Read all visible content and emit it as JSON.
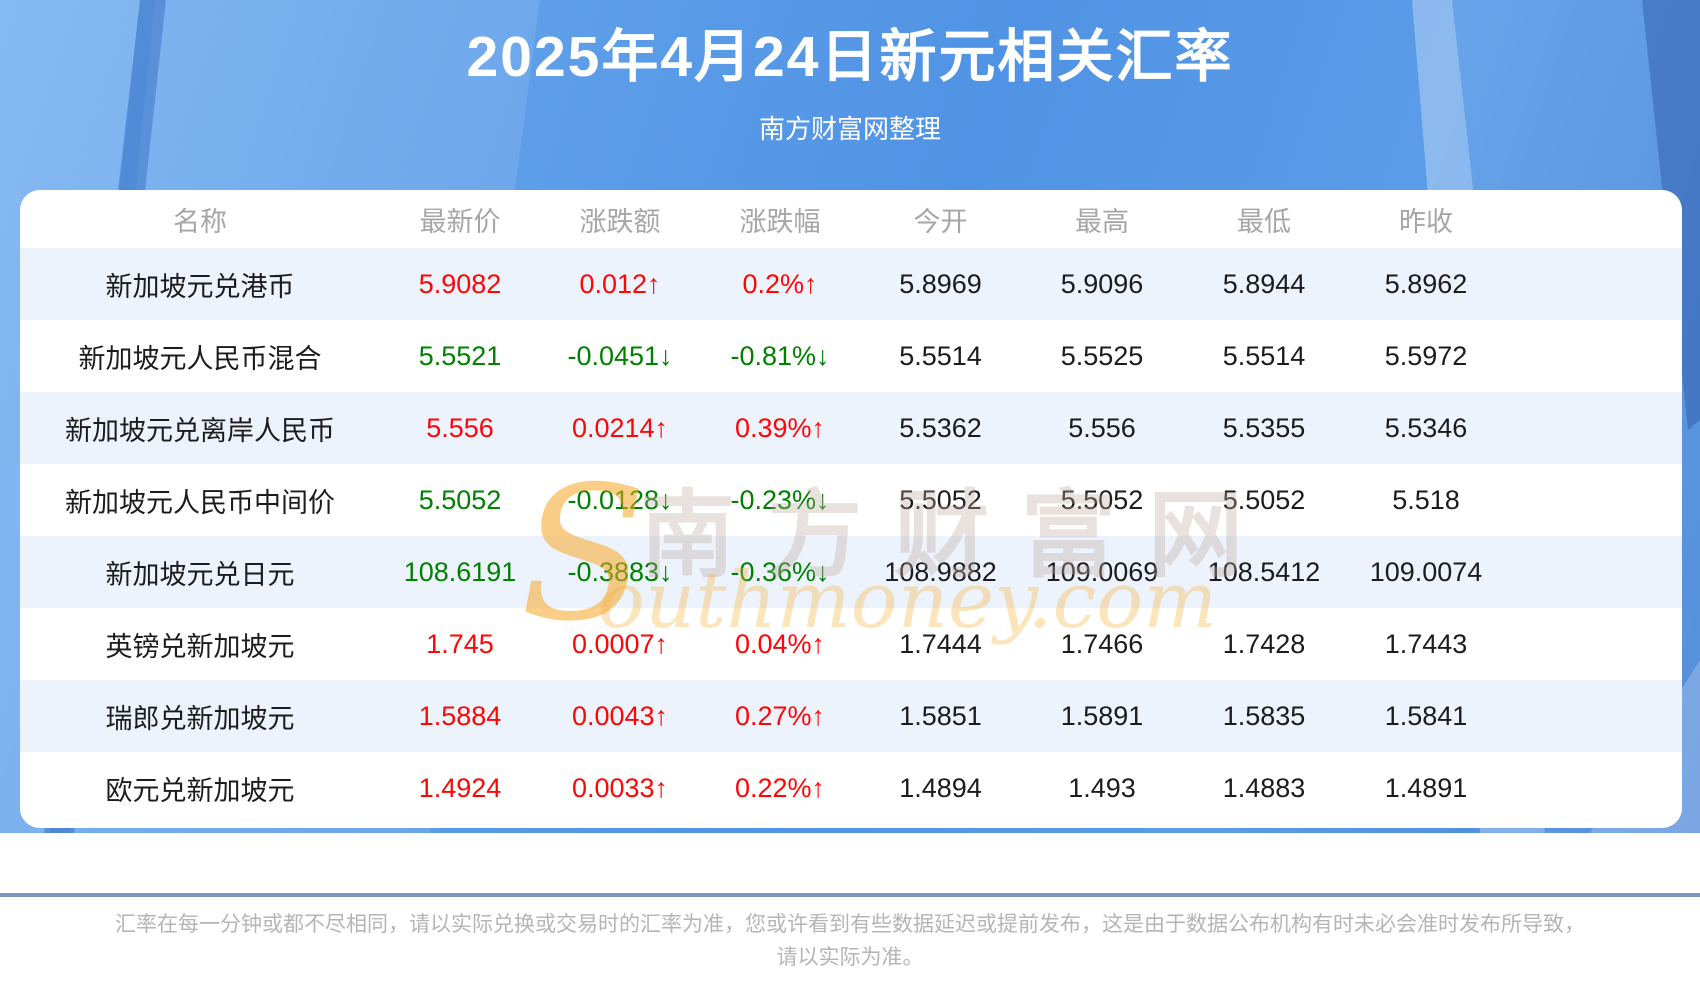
{
  "banner": {
    "title": "2025年4月24日新元相关汇率",
    "subtitle": "南方财富网整理"
  },
  "watermark": {
    "initial": "S",
    "cn": "南方财富网",
    "en": "outhmoney.com"
  },
  "footer": {
    "line1": "汇率在每一分钟或都不尽相同，请以实际兑换或交易时的汇率为准，您或许看到有些数据延迟或提前发布，这是由于数据公布机构有时未必会准时发布所导致，",
    "line2": "请以实际为准。"
  },
  "colors": {
    "up": "#fe0606",
    "down": "#028002",
    "banner_blue": "#5b9ce8",
    "row_alt_blue": "#edf3fc",
    "header_text_gray": "#a6a6a6",
    "footer_text_gray": "#b5b5b5",
    "divider_blue_gray": "#7e96bb"
  },
  "chart_data": {
    "type": "table",
    "title": "2025年4月24日新元相关汇率",
    "headers": [
      "名称",
      "最新价",
      "涨跌额",
      "涨跌幅",
      "今开",
      "最高",
      "最低",
      "昨收"
    ],
    "rows": [
      {
        "name": "新加坡元兑港币",
        "latest": "5.9082",
        "change": "0.012↑",
        "change_pct": "0.2%↑",
        "open": "5.8969",
        "high": "5.9096",
        "low": "5.8944",
        "prev_close": "5.8962",
        "trend": "up"
      },
      {
        "name": "新加坡元人民币混合",
        "latest": "5.5521",
        "change": "-0.0451↓",
        "change_pct": "-0.81%↓",
        "open": "5.5514",
        "high": "5.5525",
        "low": "5.5514",
        "prev_close": "5.5972",
        "trend": "down"
      },
      {
        "name": "新加坡元兑离岸人民币",
        "latest": "5.556",
        "change": "0.0214↑",
        "change_pct": "0.39%↑",
        "open": "5.5362",
        "high": "5.556",
        "low": "5.5355",
        "prev_close": "5.5346",
        "trend": "up"
      },
      {
        "name": "新加坡元人民币中间价",
        "latest": "5.5052",
        "change": "-0.0128↓",
        "change_pct": "-0.23%↓",
        "open": "5.5052",
        "high": "5.5052",
        "low": "5.5052",
        "prev_close": "5.518",
        "trend": "down"
      },
      {
        "name": "新加坡元兑日元",
        "latest": "108.6191",
        "change": "-0.3883↓",
        "change_pct": "-0.36%↓",
        "open": "108.9882",
        "high": "109.0069",
        "low": "108.5412",
        "prev_close": "109.0074",
        "trend": "down"
      },
      {
        "name": "英镑兑新加坡元",
        "latest": "1.745",
        "change": "0.0007↑",
        "change_pct": "0.04%↑",
        "open": "1.7444",
        "high": "1.7466",
        "low": "1.7428",
        "prev_close": "1.7443",
        "trend": "up"
      },
      {
        "name": "瑞郎兑新加坡元",
        "latest": "1.5884",
        "change": "0.0043↑",
        "change_pct": "0.27%↑",
        "open": "1.5851",
        "high": "1.5891",
        "low": "1.5835",
        "prev_close": "1.5841",
        "trend": "up"
      },
      {
        "name": "欧元兑新加坡元",
        "latest": "1.4924",
        "change": "0.0033↑",
        "change_pct": "0.22%↑",
        "open": "1.4894",
        "high": "1.493",
        "low": "1.4883",
        "prev_close": "1.4891",
        "trend": "up"
      }
    ]
  }
}
